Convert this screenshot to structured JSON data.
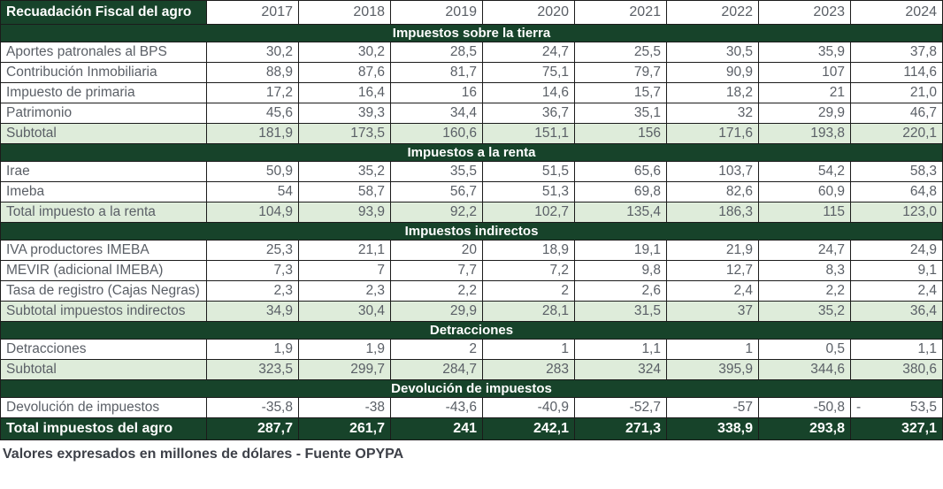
{
  "colors": {
    "dark_green": "#17432a",
    "light_green": "#deecda",
    "number_gray": "#5a5f66",
    "border_black": "#1b1b1b",
    "footnote_gray": "#3e4149"
  },
  "chart_data": {
    "type": "table",
    "title": "Recuadación Fiscal del agro",
    "unit_note": "millones de dólares",
    "columns": [
      "2017",
      "2018",
      "2019",
      "2020",
      "2021",
      "2022",
      "2023",
      "2024"
    ],
    "sections": [
      {
        "band": "Impuestos sobre la tierra",
        "rows": [
          {
            "label": "Aportes patronales al BPS",
            "type": "data",
            "values": [
              "30,2",
              "30,2",
              "28,5",
              "24,7",
              "25,5",
              "30,5",
              "35,9",
              "37,8"
            ]
          },
          {
            "label": "Contribución Inmobiliaria",
            "type": "data",
            "values": [
              "88,9",
              "87,6",
              "81,7",
              "75,1",
              "79,7",
              "90,9",
              "107",
              "114,6"
            ]
          },
          {
            "label": "Impuesto de primaria",
            "type": "data",
            "values": [
              "17,2",
              "16,4",
              "16",
              "14,6",
              "15,7",
              "18,2",
              "21",
              "21,0"
            ]
          },
          {
            "label": "Patrimonio",
            "type": "data",
            "values": [
              "45,6",
              "39,3",
              "34,4",
              "36,7",
              "35,1",
              "32",
              "29,9",
              "46,7"
            ]
          },
          {
            "label": "Subtotal",
            "type": "subtotal",
            "values": [
              "181,9",
              "173,5",
              "160,6",
              "151,1",
              "156",
              "171,6",
              "193,8",
              "220,1"
            ]
          }
        ]
      },
      {
        "band": "Impuestos a la renta",
        "rows": [
          {
            "label": "Irae",
            "type": "data",
            "values": [
              "50,9",
              "35,2",
              "35,5",
              "51,5",
              "65,6",
              "103,7",
              "54,2",
              "58,3"
            ]
          },
          {
            "label": "Imeba",
            "type": "data",
            "values": [
              "54",
              "58,7",
              "56,7",
              "51,3",
              "69,8",
              "82,6",
              "60,9",
              "64,8"
            ]
          },
          {
            "label": "Total impuesto a la renta",
            "type": "subtotal",
            "values": [
              "104,9",
              "93,9",
              "92,2",
              "102,7",
              "135,4",
              "186,3",
              "115",
              "123,0"
            ]
          }
        ]
      },
      {
        "band": "Impuestos indirectos",
        "rows": [
          {
            "label": "IVA productores IMEBA",
            "type": "data",
            "values": [
              "25,3",
              "21,1",
              "20",
              "18,9",
              "19,1",
              "21,9",
              "24,7",
              "24,9"
            ]
          },
          {
            "label": "MEVIR (adicional IMEBA)",
            "type": "data",
            "values": [
              "7,3",
              "7",
              "7,7",
              "7,2",
              "9,8",
              "12,7",
              "8,3",
              "9,1"
            ]
          },
          {
            "label": "Tasa de registro (Cajas Negras)",
            "type": "data",
            "values": [
              "2,3",
              "2,3",
              "2,2",
              "2",
              "2,6",
              "2,4",
              "2,2",
              "2,4"
            ]
          },
          {
            "label": "Subtotal impuestos indirectos",
            "type": "subtotal",
            "values": [
              "34,9",
              "30,4",
              "29,9",
              "28,1",
              "31,5",
              "37",
              "35,2",
              "36,4"
            ]
          }
        ]
      },
      {
        "band": "Detracciones",
        "rows": [
          {
            "label": "Detracciones",
            "type": "data",
            "values": [
              "1,9",
              "1,9",
              "2",
              "1",
              "1,1",
              "1",
              "0,5",
              "1,1"
            ]
          },
          {
            "label": "Subtotal",
            "type": "subtotal",
            "values": [
              "323,5",
              "299,7",
              "284,7",
              "283",
              "324",
              "395,9",
              "344,6",
              "380,6"
            ]
          }
        ]
      },
      {
        "band": "Devolución de impuestos",
        "rows": [
          {
            "label": "Devolución de impuestos",
            "type": "data",
            "values": [
              "-35,8",
              "-38",
              "-43,6",
              "-40,9",
              "-52,7",
              "-57",
              "-50,8",
              "- 53,5"
            ]
          }
        ]
      }
    ],
    "total_row": {
      "label": "Total impuestos del agro",
      "values": [
        "287,7",
        "261,7",
        "241",
        "242,1",
        "271,3",
        "338,9",
        "293,8",
        "327,1"
      ]
    },
    "footnote": "Valores expresados en millones de dólares - Fuente OPYPA"
  }
}
